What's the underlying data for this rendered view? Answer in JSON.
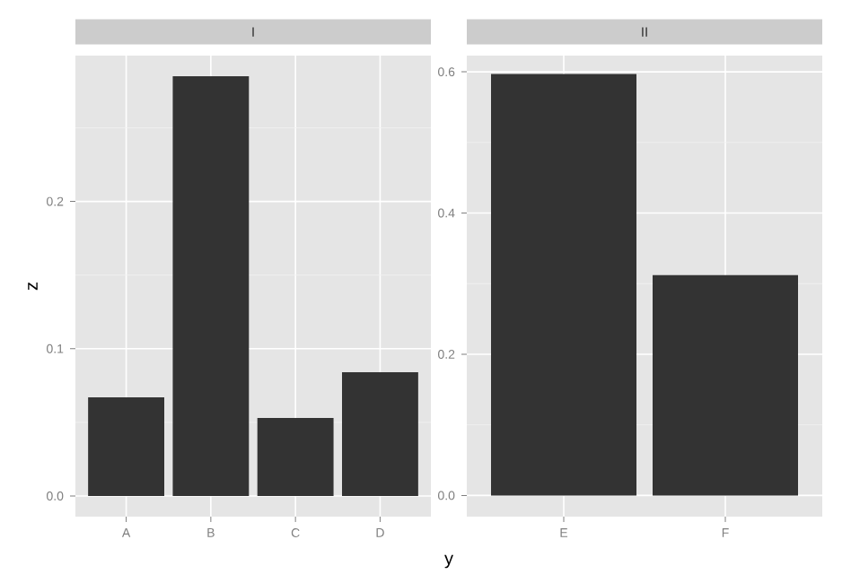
{
  "chart_data": [
    {
      "type": "bar",
      "title": "I",
      "xlabel": "y",
      "ylabel": "z",
      "categories": [
        "A",
        "B",
        "C",
        "D"
      ],
      "values": [
        0.067,
        0.285,
        0.053,
        0.084
      ],
      "color": "#333333",
      "ylim": [
        -0.014,
        0.299
      ],
      "yticks": [
        {
          "value": 0,
          "label": "0.0"
        },
        0.1,
        0.2
      ],
      "grid": true
    },
    {
      "type": "bar",
      "title": "II",
      "categories": [
        "E",
        "F"
      ],
      "values": [
        0.597,
        0.312
      ],
      "color": "#333333",
      "ylim": [
        -0.03,
        0.623
      ],
      "yticks": [
        {
          "value": 0,
          "label": "0.0"
        },
        0.2,
        0.4,
        0.6
      ],
      "grid": true
    }
  ]
}
